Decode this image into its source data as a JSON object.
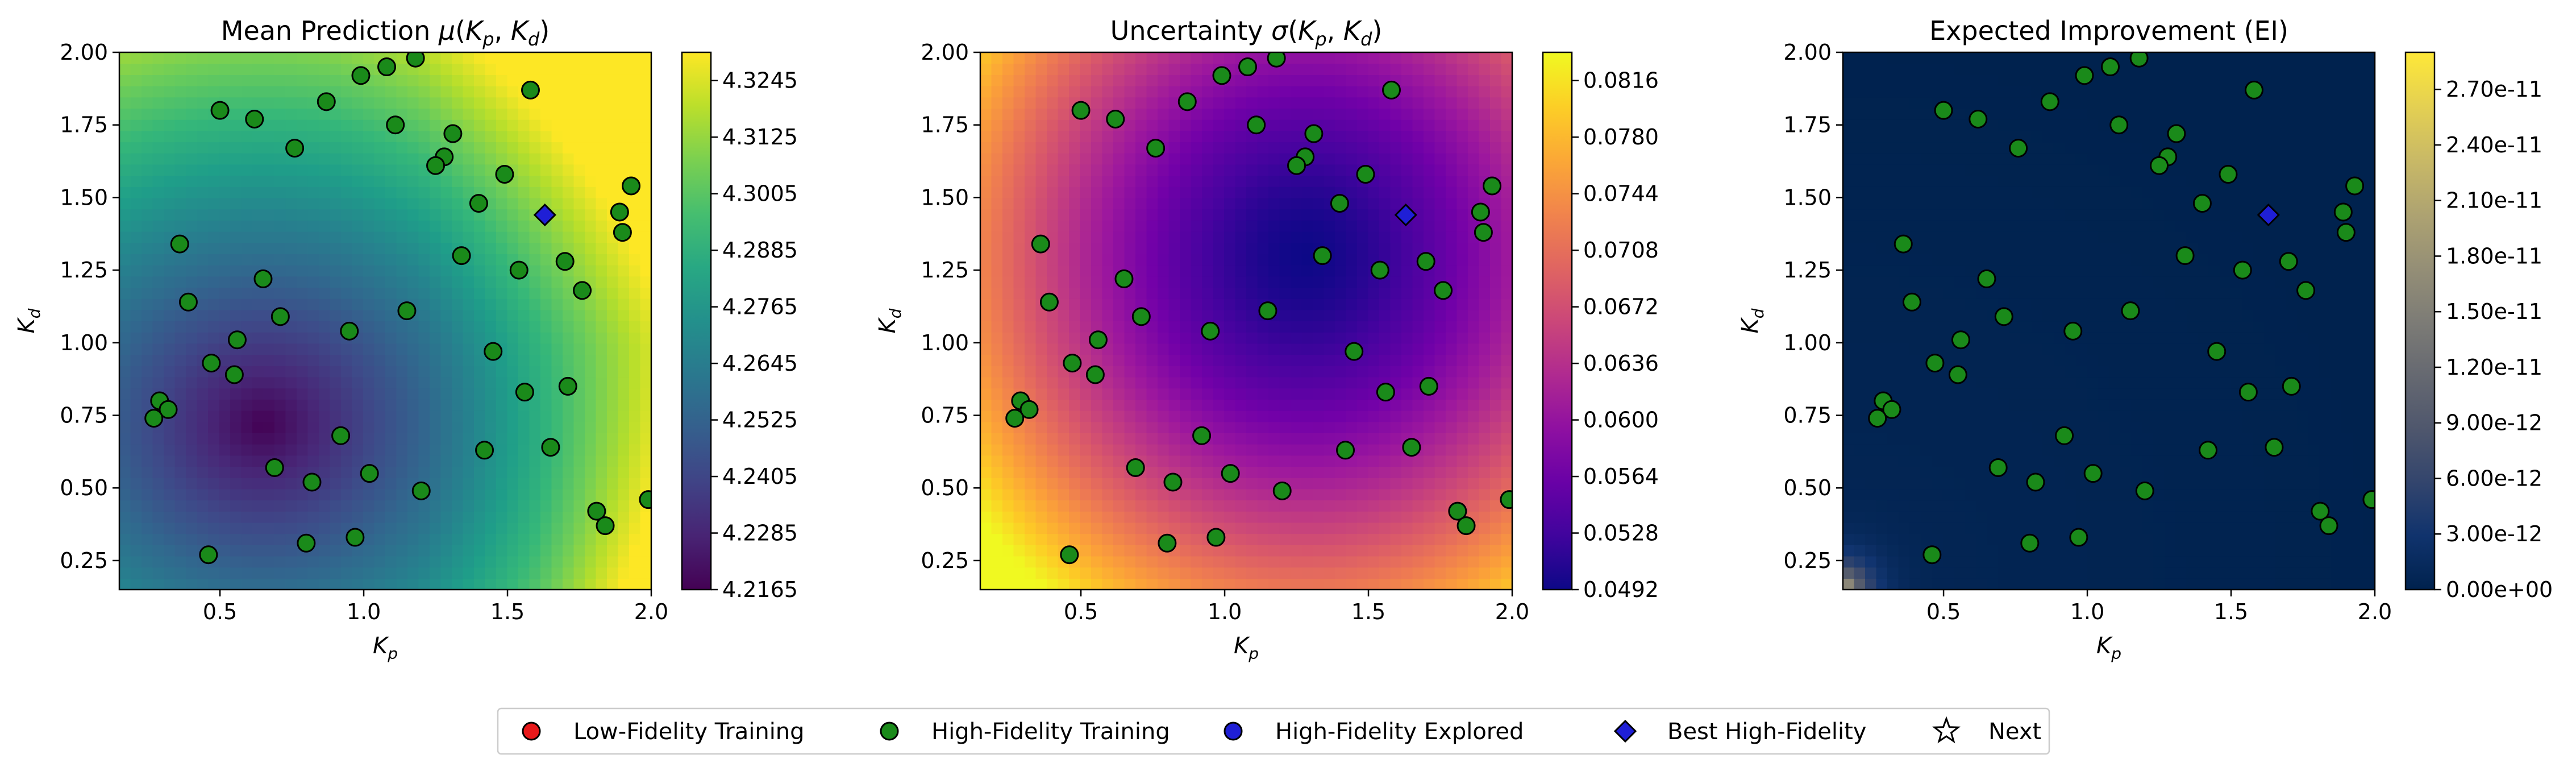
{
  "chart_data": [
    {
      "type": "heatmap",
      "title": "Mean Prediction μ(Kp, Kd)",
      "title_parts": {
        "prefix": "Mean Prediction ",
        "func": "μ",
        "args": [
          "K",
          "p",
          "K",
          "d"
        ]
      },
      "xlabel": {
        "base": "K",
        "sub": "p"
      },
      "ylabel": {
        "base": "K",
        "sub": "d"
      },
      "xlim": [
        0.15,
        2.0
      ],
      "ylim": [
        0.15,
        2.0
      ],
      "xticks": [
        "0.5",
        "1.0",
        "1.5",
        "2.0"
      ],
      "yticks": [
        "0.25",
        "0.50",
        "0.75",
        "1.00",
        "1.25",
        "1.50",
        "1.75",
        "2.00"
      ],
      "colormap": "viridis",
      "colorbar": {
        "min": 4.2165,
        "max": 4.3305,
        "ticks": [
          "4.2165",
          "4.2285",
          "4.2405",
          "4.2525",
          "4.2645",
          "4.2765",
          "4.2885",
          "4.3005",
          "4.3125",
          "4.3245"
        ]
      },
      "surface": {
        "minimum_at": [
          0.65,
          0.72
        ],
        "increases_toward": "upper-right and lower-right edges"
      }
    },
    {
      "type": "heatmap",
      "title": "Uncertainty σ(Kp, Kd)",
      "title_parts": {
        "prefix": "Uncertainty ",
        "func": "σ",
        "args": [
          "K",
          "p",
          "K",
          "d"
        ]
      },
      "xlabel": {
        "base": "K",
        "sub": "p"
      },
      "ylabel": {
        "base": "K",
        "sub": "d"
      },
      "xlim": [
        0.15,
        2.0
      ],
      "ylim": [
        0.15,
        2.0
      ],
      "xticks": [
        "0.5",
        "1.0",
        "1.5",
        "2.0"
      ],
      "yticks": [
        "0.25",
        "0.50",
        "0.75",
        "1.00",
        "1.25",
        "1.50",
        "1.75",
        "2.00"
      ],
      "colormap": "plasma",
      "colorbar": {
        "min": 0.0492,
        "max": 0.0834,
        "ticks": [
          "0.0492",
          "0.0528",
          "0.0564",
          "0.0600",
          "0.0636",
          "0.0672",
          "0.0708",
          "0.0744",
          "0.0780",
          "0.0816"
        ]
      },
      "surface": {
        "minimum_at": [
          1.28,
          1.3
        ],
        "increases_toward": "corners"
      }
    },
    {
      "type": "heatmap",
      "title": "Expected Improvement (EI)",
      "xlabel": {
        "base": "K",
        "sub": "p"
      },
      "ylabel": {
        "base": "K",
        "sub": "d"
      },
      "xlim": [
        0.15,
        2.0
      ],
      "ylim": [
        0.15,
        2.0
      ],
      "xticks": [
        "0.5",
        "1.0",
        "1.5",
        "2.0"
      ],
      "yticks": [
        "0.25",
        "0.50",
        "0.75",
        "1.00",
        "1.25",
        "1.50",
        "1.75",
        "2.00"
      ],
      "colormap": "cividis",
      "colorbar": {
        "min": 0,
        "max": 2.9e-11,
        "ticks": [
          "0.00e+00",
          "3.00e-12",
          "6.00e-12",
          "9.00e-12",
          "1.20e-11",
          "1.50e-11",
          "1.80e-11",
          "2.10e-11",
          "2.40e-11",
          "2.70e-11"
        ]
      },
      "surface": {
        "maximum_at": [
          0.15,
          0.15
        ],
        "near_zero_elsewhere": true
      }
    }
  ],
  "points": {
    "high_fidelity_training": [
      [
        1.18,
        1.98
      ],
      [
        1.08,
        1.95
      ],
      [
        0.99,
        1.92
      ],
      [
        0.87,
        1.83
      ],
      [
        0.5,
        1.8
      ],
      [
        0.62,
        1.77
      ],
      [
        0.76,
        1.67
      ],
      [
        1.11,
        1.75
      ],
      [
        1.58,
        1.87
      ],
      [
        1.31,
        1.72
      ],
      [
        1.28,
        1.64
      ],
      [
        1.25,
        1.61
      ],
      [
        1.49,
        1.58
      ],
      [
        1.93,
        1.54
      ],
      [
        1.4,
        1.48
      ],
      [
        1.89,
        1.45
      ],
      [
        1.9,
        1.38
      ],
      [
        1.34,
        1.3
      ],
      [
        0.36,
        1.34
      ],
      [
        1.7,
        1.28
      ],
      [
        1.54,
        1.25
      ],
      [
        0.65,
        1.22
      ],
      [
        1.76,
        1.18
      ],
      [
        0.39,
        1.14
      ],
      [
        1.15,
        1.11
      ],
      [
        0.71,
        1.09
      ],
      [
        0.95,
        1.04
      ],
      [
        0.56,
        1.01
      ],
      [
        1.45,
        0.97
      ],
      [
        0.47,
        0.93
      ],
      [
        0.55,
        0.89
      ],
      [
        1.71,
        0.85
      ],
      [
        1.56,
        0.83
      ],
      [
        0.29,
        0.8
      ],
      [
        0.32,
        0.77
      ],
      [
        0.27,
        0.74
      ],
      [
        0.92,
        0.68
      ],
      [
        1.42,
        0.63
      ],
      [
        1.65,
        0.64
      ],
      [
        0.69,
        0.57
      ],
      [
        1.02,
        0.55
      ],
      [
        0.82,
        0.52
      ],
      [
        1.2,
        0.49
      ],
      [
        1.99,
        0.46
      ],
      [
        1.81,
        0.42
      ],
      [
        1.84,
        0.37
      ],
      [
        0.8,
        0.31
      ],
      [
        0.97,
        0.33
      ],
      [
        0.46,
        0.27
      ]
    ],
    "best_high_fidelity": [
      1.63,
      1.44
    ]
  },
  "legend": [
    {
      "label": "Low-Fidelity Training",
      "marker": "circle",
      "color": "#e8191b"
    },
    {
      "label": "High-Fidelity Training",
      "marker": "circle",
      "color": "#1a8a1a"
    },
    {
      "label": "High-Fidelity Explored",
      "marker": "circle",
      "color": "#1f1fd6"
    },
    {
      "label": "Best High-Fidelity",
      "marker": "diamond",
      "color": "#1f1fd6"
    },
    {
      "label": "Next",
      "marker": "star",
      "color": "#ffffff"
    }
  ]
}
